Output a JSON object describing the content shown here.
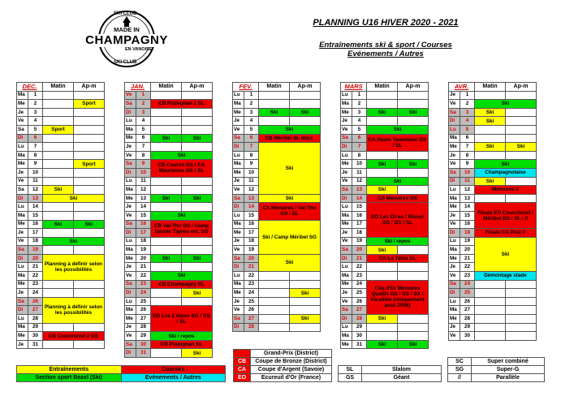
{
  "header": {
    "title": "PLANNING U16 HIVER 2020 - 2021",
    "line1": "Entraînements ski & sport / Courses",
    "line2": "Evénements / Autres"
  },
  "logo": {
    "top": "SKI CLUB",
    "line1": "MADE IN",
    "line2": "CHAMPAGNY",
    "line3": "EN VANOISE",
    "bottom": "SKI CLUB"
  },
  "colors": {
    "training": "#ffff00",
    "sport_bozel": "#00dd00",
    "race": "#ee0000",
    "event": "#00e5ee",
    "weekend": "#bdbdbd"
  },
  "col_headers": {
    "matin": "Matin",
    "apm": "Ap-m"
  },
  "months": [
    {
      "name": "DEC.",
      "days": [
        {
          "d": "Ma",
          "n": "1"
        },
        {
          "d": "Me",
          "n": "2",
          "a": "Sport",
          "ac": "y"
        },
        {
          "d": "Je",
          "n": "3"
        },
        {
          "d": "Ve",
          "n": "4"
        },
        {
          "d": "Sa",
          "n": "5",
          "m": "Sport",
          "mc": "y"
        },
        {
          "d": "Di",
          "n": "6",
          "w": 1
        },
        {
          "d": "Lu",
          "n": "7"
        },
        {
          "d": "Ma",
          "n": "8"
        },
        {
          "d": "Me",
          "n": "9",
          "a": "Sport",
          "ac": "y"
        },
        {
          "d": "Je",
          "n": "10"
        },
        {
          "d": "Ve",
          "n": "11"
        },
        {
          "d": "Sa",
          "n": "12",
          "m": "Ski",
          "mc": "y"
        },
        {
          "d": "Di",
          "n": "13",
          "w": 1,
          "f": "Ski",
          "fc": "y"
        },
        {
          "d": "Lu",
          "n": "14"
        },
        {
          "d": "Ma",
          "n": "15"
        },
        {
          "d": "Me",
          "n": "16",
          "m": "Ski",
          "mc": "g",
          "a": "Ski",
          "ac": "g"
        },
        {
          "d": "Je",
          "n": "17"
        },
        {
          "d": "Ve",
          "n": "18",
          "f": "Ski",
          "fc": "g"
        },
        {
          "d": "Sa",
          "n": "19",
          "w": 1
        },
        {
          "d": "Di",
          "n": "20",
          "w": 1,
          "f": "Planning à définir selon les possibilités",
          "fc": "y",
          "span": 3
        },
        {
          "d": "Lu",
          "n": "21"
        },
        {
          "d": "Ma",
          "n": "22"
        },
        {
          "d": "Me",
          "n": "23"
        },
        {
          "d": "Je",
          "n": "24"
        },
        {
          "d": "Sa",
          "n": "26",
          "w": 1,
          "f": "Planning à définir selon les possibilités",
          "fc": "y",
          "span": 3
        },
        {
          "d": "Di",
          "n": "27",
          "w": 1
        },
        {
          "d": "Lu",
          "n": "28"
        },
        {
          "d": "Ma",
          "n": "29"
        },
        {
          "d": "Me",
          "n": "30",
          "f": "CB Courchevel 2 GS",
          "fc": "r"
        },
        {
          "d": "Je",
          "n": "31"
        }
      ]
    },
    {
      "name": "JAN.",
      "days": [
        {
          "d": "Ve",
          "n": "1",
          "w": 1
        },
        {
          "d": "Sa",
          "n": "2",
          "w": 1,
          "f": "CB Pralognan 2 SL",
          "fc": "r"
        },
        {
          "d": "Di",
          "n": "3",
          "w": 1
        },
        {
          "d": "Lu",
          "n": "4"
        },
        {
          "d": "Ma",
          "n": "5"
        },
        {
          "d": "Me",
          "n": "6",
          "m": "Ski",
          "mc": "g",
          "a": "Ski",
          "ac": "g"
        },
        {
          "d": "Je",
          "n": "7"
        },
        {
          "d": "Ve",
          "n": "8",
          "f": "Ski",
          "fc": "g"
        },
        {
          "d": "Sa",
          "n": "9",
          "w": 1,
          "f": "CB Courch GS / CA Maurienne GS / SL",
          "fc": "r",
          "span": 2
        },
        {
          "d": "Di",
          "n": "10",
          "w": 1
        },
        {
          "d": "Lu",
          "n": "11"
        },
        {
          "d": "Ma",
          "n": "12"
        },
        {
          "d": "Me",
          "n": "13",
          "m": "Ski",
          "mc": "g",
          "a": "Ski",
          "ac": "g"
        },
        {
          "d": "Je",
          "n": "14"
        },
        {
          "d": "Ve",
          "n": "15",
          "f": "Ski",
          "fc": "g"
        },
        {
          "d": "Sa",
          "n": "16",
          "w": 1,
          "f": "CB Val-Tho GS / Camp Savoie Tignes ent. SG",
          "fc": "r",
          "span": 2
        },
        {
          "d": "Di",
          "n": "17",
          "w": 1
        },
        {
          "d": "Lu",
          "n": "18"
        },
        {
          "d": "Ma",
          "n": "19"
        },
        {
          "d": "Me",
          "n": "20",
          "m": "Ski",
          "mc": "g",
          "a": "Ski",
          "ac": "g"
        },
        {
          "d": "Je",
          "n": "21"
        },
        {
          "d": "Ve",
          "n": "22",
          "f": "Ski",
          "fc": "g"
        },
        {
          "d": "Sa",
          "n": "23",
          "w": 1,
          "f": "CB Champagny SL",
          "fc": "r"
        },
        {
          "d": "Di",
          "n": "24",
          "w": 1,
          "a": "Ski",
          "ac": "y"
        },
        {
          "d": "Lu",
          "n": "25"
        },
        {
          "d": "Ma",
          "n": "26",
          "f": "EO Les 2 Alpes SG / GS / SL",
          "fc": "r",
          "span": 3
        },
        {
          "d": "Me",
          "n": "27"
        },
        {
          "d": "Je",
          "n": "28"
        },
        {
          "d": "Ve",
          "n": "29",
          "f": "Ski / repos",
          "fc": "g"
        },
        {
          "d": "Sa",
          "n": "30",
          "w": 1,
          "f": "CB Pralognan SL",
          "fc": "r"
        },
        {
          "d": "Di",
          "n": "31",
          "w": 1,
          "a": "Ski",
          "ac": "y"
        }
      ]
    },
    {
      "name": "FEV.",
      "days": [
        {
          "d": "Lu",
          "n": "1"
        },
        {
          "d": "Ma",
          "n": "2"
        },
        {
          "d": "Me",
          "n": "3",
          "m": "Ski",
          "mc": "g",
          "a": "Ski",
          "ac": "g"
        },
        {
          "d": "Je",
          "n": "4"
        },
        {
          "d": "Ve",
          "n": "5",
          "f": "Ski",
          "fc": "g"
        },
        {
          "d": "Sa",
          "n": "6",
          "w": 1,
          "f": "CB Méribel SL Noct.",
          "fc": "r"
        },
        {
          "d": "Di",
          "n": "7",
          "w": 1,
          "f": "Ski",
          "fc": "y",
          "span": 6
        },
        {
          "d": "Lu",
          "n": "8"
        },
        {
          "d": "Ma",
          "n": "9"
        },
        {
          "d": "Me",
          "n": "10"
        },
        {
          "d": "Je",
          "n": "11"
        },
        {
          "d": "Ve",
          "n": "12"
        },
        {
          "d": "Sa",
          "n": "13",
          "w": 1,
          "f": "Ski",
          "fc": "y"
        },
        {
          "d": "Di",
          "n": "14",
          "w": 1,
          "f": "CA Menuires / Val-Tho GS / SL",
          "fc": "r",
          "span": 2
        },
        {
          "d": "Lu",
          "n": "15"
        },
        {
          "d": "Ma",
          "n": "16",
          "f": "Ski / Camp Méribel SG",
          "fc": "y",
          "span": 4
        },
        {
          "d": "Me",
          "n": "17"
        },
        {
          "d": "Je",
          "n": "18"
        },
        {
          "d": "Ve",
          "n": "19"
        },
        {
          "d": "Sa",
          "n": "20",
          "w": 1,
          "f": "Ski",
          "fc": "y",
          "span": 2
        },
        {
          "d": "Di",
          "n": "21",
          "w": 1
        },
        {
          "d": "Lu",
          "n": "22"
        },
        {
          "d": "Ma",
          "n": "23"
        },
        {
          "d": "Me",
          "n": "24",
          "a": "Ski",
          "ac": "y"
        },
        {
          "d": "Je",
          "n": "25"
        },
        {
          "d": "Ve",
          "n": "26"
        },
        {
          "d": "Sa",
          "n": "27",
          "w": 1,
          "a": "Ski",
          "ac": "y"
        },
        {
          "d": "Di",
          "n": "28",
          "w": 1
        }
      ]
    },
    {
      "name": "MARS",
      "days": [
        {
          "d": "Lu",
          "n": "1"
        },
        {
          "d": "Ma",
          "n": "2"
        },
        {
          "d": "Me",
          "n": "3",
          "m": "Ski",
          "mc": "g",
          "a": "Ski",
          "ac": "g"
        },
        {
          "d": "Je",
          "n": "4"
        },
        {
          "d": "Ve",
          "n": "5",
          "f": "Ski",
          "fc": "g"
        },
        {
          "d": "Sa",
          "n": "6",
          "w": 1,
          "f": "CA Haute Tarentaise GS / SL",
          "fc": "r",
          "span": 2
        },
        {
          "d": "Di",
          "n": "7",
          "w": 1
        },
        {
          "d": "Lu",
          "n": "8"
        },
        {
          "d": "Me",
          "n": "10",
          "m": "Ski",
          "mc": "g",
          "a": "Ski",
          "ac": "g"
        },
        {
          "d": "Je",
          "n": "11"
        },
        {
          "d": "Ve",
          "n": "12",
          "f": "Ski",
          "fc": "g"
        },
        {
          "d": "Sa",
          "n": "13",
          "w": 1,
          "m": "Ski",
          "mc": "y"
        },
        {
          "d": "Di",
          "n": "14",
          "w": 1,
          "f": "CA Menuires GS",
          "fc": "r"
        },
        {
          "d": "Lu",
          "n": "15",
          "f": "EO Les Orres / Risoul SG / GS / SL",
          "fc": "r",
          "span": 4
        },
        {
          "d": "Ma",
          "n": "16"
        },
        {
          "d": "Me",
          "n": "17"
        },
        {
          "d": "Je",
          "n": "18"
        },
        {
          "d": "Ve",
          "n": "19",
          "f": "Ski / repos",
          "fc": "g"
        },
        {
          "d": "Sa",
          "n": "20",
          "w": 1,
          "m": "Ski",
          "mc": "y"
        },
        {
          "d": "Di",
          "n": "21",
          "w": 1,
          "f": "CA La Tania SL",
          "fc": "r"
        },
        {
          "d": "Lu",
          "n": "22"
        },
        {
          "d": "Ma",
          "n": "23"
        },
        {
          "d": "Me",
          "n": "24",
          "f": "Coq d'Or Ménuires Qualifs GS / GS / SX / Parallèle (Uniquement pour 2006)",
          "fc": "r",
          "span": 4
        },
        {
          "d": "Je",
          "n": "25"
        },
        {
          "d": "Ve",
          "n": "26"
        },
        {
          "d": "Sa",
          "n": "27",
          "w": 1
        },
        {
          "d": "Di",
          "n": "28",
          "w": 1,
          "m": "Ski",
          "mc": "y"
        },
        {
          "d": "Lu",
          "n": "29"
        },
        {
          "d": "Ma",
          "n": "30"
        },
        {
          "d": "Me",
          "n": "31",
          "m": "Ski",
          "mc": "g",
          "a": "Ski",
          "ac": "g"
        }
      ]
    },
    {
      "name": "AVR.",
      "days": [
        {
          "d": "Je",
          "n": "1"
        },
        {
          "d": "Ve",
          "n": "2",
          "f": "Ski",
          "fc": "g"
        },
        {
          "d": "Sa",
          "n": "3",
          "w": 1,
          "m": "Ski",
          "mc": "y"
        },
        {
          "d": "Di",
          "n": "4",
          "w": 1,
          "m": "Ski",
          "mc": "y"
        },
        {
          "d": "Lu",
          "n": "5",
          "w": 1
        },
        {
          "d": "Ma",
          "n": "6"
        },
        {
          "d": "Me",
          "n": "7",
          "m": "Ski",
          "mc": "y",
          "a": "Ski",
          "ac": "y"
        },
        {
          "d": "Je",
          "n": "8"
        },
        {
          "d": "Ve",
          "n": "9",
          "f": "Ski",
          "fc": "g"
        },
        {
          "d": "Sa",
          "n": "10",
          "w": 1,
          "f": "Champagnolaise",
          "fc": "c"
        },
        {
          "d": "Di",
          "n": "11",
          "w": 1,
          "m": "Ski",
          "mc": "y"
        },
        {
          "d": "Lu",
          "n": "12",
          "f": "Menuires //",
          "fc": "r"
        },
        {
          "d": "Ma",
          "n": "13"
        },
        {
          "d": "Me",
          "n": "14",
          "f": "Finale EO Courchevel / Méribel GS / SL / //",
          "fc": "r",
          "span": 3
        },
        {
          "d": "Je",
          "n": "15"
        },
        {
          "d": "Ve",
          "n": "16"
        },
        {
          "d": "Di",
          "n": "18",
          "w": 1,
          "f": "Finale CA Praz //",
          "fc": "r"
        },
        {
          "d": "Lu",
          "n": "19",
          "f": "Ski",
          "fc": "y",
          "span": 4
        },
        {
          "d": "Ma",
          "n": "20"
        },
        {
          "d": "Me",
          "n": "21"
        },
        {
          "d": "Je",
          "n": "22"
        },
        {
          "d": "Ve",
          "n": "23",
          "f": "Démontage stade",
          "fc": "c"
        },
        {
          "d": "Sa",
          "n": "24",
          "w": 1
        },
        {
          "d": "Di",
          "n": "25",
          "w": 1
        },
        {
          "d": "Lu",
          "n": "26"
        },
        {
          "d": "Ma",
          "n": "27"
        },
        {
          "d": "Me",
          "n": "28"
        },
        {
          "d": "Je",
          "n": "29"
        },
        {
          "d": "Ve",
          "n": "30"
        }
      ]
    }
  ],
  "legend": {
    "training": "Entraînements",
    "sport_bozel": "Section sport Bozel (Ski)",
    "races": "Courses",
    "events": "Evénements / Autres"
  },
  "codes": [
    {
      "k": "",
      "v": "Grand-Prix (District)",
      "bg": "#ee0000"
    },
    {
      "k": "CB",
      "v": "Coupe de Bronze (District)",
      "bg": "#ee0000"
    },
    {
      "k": "CA",
      "v": "Coupe d'Argent (Savoie)",
      "bg": "#ee0000"
    },
    {
      "k": "EO",
      "v": "Ecureuil d'Or (France)",
      "bg": "#ee0000"
    }
  ],
  "disciplines": [
    {
      "k": "SL",
      "v": "Slalom"
    },
    {
      "k": "GS",
      "v": "Géant"
    },
    {
      "k": "SC",
      "v": "Super combiné"
    },
    {
      "k": "SG",
      "v": "Super-G"
    },
    {
      "k": "//",
      "v": "Parallèle"
    }
  ]
}
